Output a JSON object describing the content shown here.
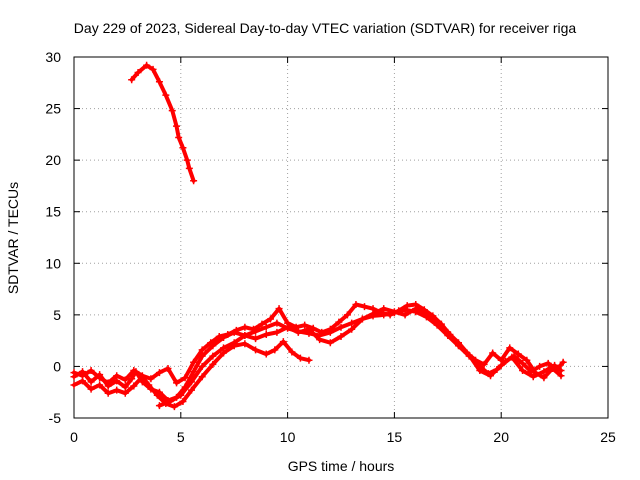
{
  "chart_data": {
    "type": "line",
    "title": "Day 229 of 2023, Sidereal Day-to-day VTEC variation (SDTVAR) for receiver riga",
    "xlabel": "GPS time / hours",
    "ylabel": "SDTVAR / TECUs",
    "xlim": [
      0,
      25
    ],
    "ylim": [
      -5,
      30
    ],
    "xticks": [
      0,
      5,
      10,
      15,
      20,
      25
    ],
    "yticks": [
      -5,
      0,
      5,
      10,
      15,
      20,
      25,
      30
    ],
    "grid": true,
    "color": "#ff0000",
    "series": [
      {
        "name": "trace-1",
        "points": [
          [
            0.0,
            -1.0
          ],
          [
            0.4,
            -0.5
          ],
          [
            0.8,
            -1.5
          ],
          [
            1.2,
            -0.8
          ],
          [
            1.6,
            -1.9
          ],
          [
            2.0,
            -1.4
          ],
          [
            2.4,
            -2.0
          ],
          [
            2.7,
            -1.2
          ],
          [
            2.9,
            -0.5
          ],
          [
            3.2,
            -1.5
          ],
          [
            3.6,
            -2.2
          ],
          [
            4.0,
            -2.5
          ],
          [
            4.4,
            -3.3
          ],
          [
            4.8,
            -3.0
          ],
          [
            5.2,
            -2.0
          ],
          [
            5.6,
            -0.5
          ],
          [
            6.0,
            1.0
          ],
          [
            6.5,
            2.0
          ],
          [
            7.0,
            2.8
          ],
          [
            7.5,
            3.3
          ],
          [
            8.0,
            3.0
          ],
          [
            8.5,
            3.4
          ],
          [
            9.0,
            3.8
          ],
          [
            9.5,
            4.2
          ],
          [
            10.0,
            3.7
          ],
          [
            10.5,
            3.4
          ],
          [
            11.0,
            3.2
          ],
          [
            11.5,
            3.0
          ],
          [
            12.0,
            3.3
          ],
          [
            12.5,
            3.8
          ],
          [
            13.0,
            4.2
          ],
          [
            13.5,
            4.6
          ],
          [
            14.0,
            4.9
          ],
          [
            14.5,
            5.0
          ],
          [
            15.0,
            5.2
          ],
          [
            15.5,
            5.5
          ],
          [
            16.0,
            5.3
          ],
          [
            16.5,
            4.8
          ],
          [
            17.0,
            4.0
          ],
          [
            17.5,
            3.0
          ],
          [
            18.0,
            2.0
          ],
          [
            18.5,
            1.0
          ],
          [
            19.0,
            0.0
          ],
          [
            19.4,
            -0.7
          ],
          [
            19.8,
            -0.3
          ],
          [
            20.2,
            0.5
          ],
          [
            20.6,
            1.0
          ],
          [
            21.0,
            0.3
          ],
          [
            21.4,
            -0.5
          ],
          [
            21.8,
            0.0
          ],
          [
            22.2,
            0.3
          ],
          [
            22.6,
            -0.3
          ],
          [
            22.9,
            0.4
          ]
        ]
      },
      {
        "name": "trace-2",
        "points": [
          [
            0.0,
            -1.8
          ],
          [
            0.4,
            -1.4
          ],
          [
            0.8,
            -2.2
          ],
          [
            1.2,
            -1.8
          ],
          [
            1.6,
            -2.6
          ],
          [
            2.0,
            -2.3
          ],
          [
            2.4,
            -2.6
          ],
          [
            2.8,
            -1.9
          ],
          [
            3.2,
            -1.0
          ],
          [
            3.5,
            -1.8
          ],
          [
            3.9,
            -2.8
          ],
          [
            4.3,
            -3.6
          ],
          [
            4.7,
            -3.9
          ],
          [
            5.1,
            -3.4
          ],
          [
            5.5,
            -2.3
          ],
          [
            6.0,
            -1.0
          ],
          [
            6.5,
            0.2
          ],
          [
            7.0,
            1.3
          ],
          [
            7.5,
            2.0
          ],
          [
            8.0,
            2.2
          ],
          [
            8.5,
            1.6
          ],
          [
            9.0,
            1.2
          ],
          [
            9.4,
            1.6
          ],
          [
            9.8,
            2.4
          ],
          [
            10.2,
            1.4
          ],
          [
            10.6,
            0.8
          ],
          [
            11.0,
            0.6
          ]
        ]
      },
      {
        "name": "trace-3",
        "points": [
          [
            0.0,
            -0.6
          ],
          [
            0.4,
            -0.9
          ],
          [
            0.8,
            -0.4
          ],
          [
            1.2,
            -1.1
          ],
          [
            1.6,
            -1.6
          ],
          [
            2.0,
            -0.9
          ],
          [
            2.4,
            -1.3
          ],
          [
            2.8,
            -0.4
          ],
          [
            3.2,
            -0.9
          ],
          [
            3.6,
            -1.2
          ],
          [
            4.0,
            -0.6
          ],
          [
            4.4,
            -0.2
          ],
          [
            4.8,
            -1.6
          ],
          [
            5.2,
            -1.1
          ],
          [
            5.6,
            0.4
          ],
          [
            6.0,
            1.6
          ],
          [
            6.4,
            2.3
          ],
          [
            6.8,
            2.9
          ],
          [
            7.2,
            3.1
          ],
          [
            7.6,
            3.5
          ],
          [
            8.0,
            3.8
          ],
          [
            8.4,
            3.6
          ],
          [
            8.8,
            4.1
          ],
          [
            9.2,
            4.6
          ],
          [
            9.6,
            5.6
          ],
          [
            10.0,
            4.2
          ],
          [
            10.4,
            3.8
          ],
          [
            10.8,
            4.0
          ],
          [
            11.2,
            3.7
          ],
          [
            11.6,
            3.3
          ],
          [
            12.0,
            3.6
          ],
          [
            12.4,
            4.3
          ],
          [
            12.8,
            5.0
          ],
          [
            13.2,
            6.0
          ],
          [
            13.6,
            5.8
          ],
          [
            14.0,
            5.6
          ],
          [
            14.4,
            5.2
          ],
          [
            14.8,
            5.0
          ],
          [
            15.2,
            5.4
          ],
          [
            15.6,
            5.9
          ],
          [
            16.0,
            6.0
          ],
          [
            16.4,
            5.5
          ],
          [
            16.8,
            4.9
          ],
          [
            17.2,
            4.1
          ],
          [
            17.6,
            3.1
          ],
          [
            18.0,
            2.1
          ],
          [
            18.4,
            1.3
          ],
          [
            18.8,
            0.6
          ],
          [
            19.2,
            0.2
          ],
          [
            19.6,
            1.3
          ],
          [
            20.0,
            0.6
          ],
          [
            20.4,
            1.8
          ],
          [
            20.8,
            1.2
          ],
          [
            21.2,
            0.6
          ],
          [
            21.6,
            -0.6
          ],
          [
            22.0,
            -1.1
          ],
          [
            22.4,
            -0.2
          ],
          [
            22.8,
            -0.9
          ]
        ]
      },
      {
        "name": "trace-4",
        "points": [
          [
            4.0,
            -3.8
          ],
          [
            4.5,
            -3.4
          ],
          [
            5.0,
            -2.8
          ],
          [
            5.5,
            -1.5
          ],
          [
            6.0,
            0.0
          ],
          [
            6.5,
            1.0
          ],
          [
            7.0,
            1.8
          ],
          [
            7.5,
            2.3
          ],
          [
            8.0,
            3.0
          ],
          [
            8.5,
            2.7
          ],
          [
            9.0,
            3.1
          ],
          [
            9.5,
            3.3
          ],
          [
            10.0,
            3.8
          ],
          [
            10.5,
            3.3
          ],
          [
            11.0,
            3.6
          ],
          [
            11.5,
            2.6
          ],
          [
            12.0,
            2.3
          ],
          [
            12.5,
            2.9
          ],
          [
            13.0,
            3.6
          ],
          [
            13.5,
            4.6
          ],
          [
            14.0,
            5.1
          ],
          [
            14.5,
            5.6
          ],
          [
            15.0,
            5.3
          ],
          [
            15.5,
            5.0
          ],
          [
            16.0,
            5.6
          ],
          [
            16.5,
            5.1
          ],
          [
            17.0,
            4.3
          ],
          [
            17.5,
            3.3
          ],
          [
            18.0,
            2.3
          ],
          [
            18.5,
            1.1
          ],
          [
            19.0,
            -0.4
          ],
          [
            19.5,
            -0.9
          ],
          [
            20.0,
            0.1
          ],
          [
            20.5,
            0.9
          ],
          [
            21.0,
            -0.4
          ],
          [
            21.5,
            -1.0
          ],
          [
            22.0,
            -0.5
          ],
          [
            22.5,
            0.1
          ],
          [
            22.8,
            -0.4
          ]
        ]
      },
      {
        "name": "trace-5",
        "points": [
          [
            2.7,
            27.8
          ],
          [
            3.0,
            28.5
          ],
          [
            3.4,
            29.2
          ],
          [
            3.7,
            28.8
          ],
          [
            4.0,
            27.6
          ],
          [
            4.3,
            26.3
          ],
          [
            4.6,
            24.8
          ],
          [
            4.8,
            23.3
          ],
          [
            4.9,
            22.2
          ],
          [
            5.1,
            21.2
          ],
          [
            5.3,
            20.0
          ],
          [
            5.4,
            19.2
          ],
          [
            5.6,
            18.0
          ]
        ]
      }
    ]
  }
}
